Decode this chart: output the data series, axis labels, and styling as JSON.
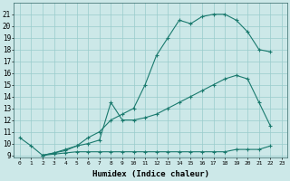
{
  "line1_x": [
    0,
    1,
    2,
    3,
    4,
    5,
    6,
    7,
    8,
    9,
    10,
    11,
    12,
    13,
    14,
    15,
    16,
    17,
    18,
    19,
    20,
    21,
    22
  ],
  "line1_y": [
    10.5,
    9.8,
    9.0,
    9.2,
    9.4,
    9.8,
    10.5,
    11.0,
    12.0,
    12.5,
    13.0,
    15.0,
    17.5,
    19.0,
    20.5,
    20.2,
    20.8,
    21.0,
    21.0,
    20.5,
    19.5,
    18.0,
    17.8
  ],
  "line2_x": [
    2,
    3,
    4,
    5,
    6,
    7,
    8,
    9,
    10,
    11,
    12,
    13,
    14,
    15,
    16,
    17,
    18,
    19,
    20,
    21,
    22
  ],
  "line2_y": [
    9.0,
    9.2,
    9.5,
    9.8,
    10.0,
    10.3,
    13.5,
    12.0,
    12.0,
    12.2,
    12.5,
    13.0,
    13.5,
    14.0,
    14.5,
    15.0,
    15.5,
    15.8,
    15.5,
    13.5,
    11.5
  ],
  "line3_x": [
    2,
    3,
    4,
    5,
    6,
    7,
    8,
    9,
    10,
    11,
    12,
    13,
    14,
    15,
    16,
    17,
    18,
    19,
    20,
    21,
    22
  ],
  "line3_y": [
    9.0,
    9.1,
    9.2,
    9.3,
    9.3,
    9.3,
    9.3,
    9.3,
    9.3,
    9.3,
    9.3,
    9.3,
    9.3,
    9.3,
    9.3,
    9.3,
    9.3,
    9.5,
    9.5,
    9.5,
    9.8
  ],
  "line_color": "#1a7a6e",
  "bg_color": "#cce8e8",
  "grid_color": "#99cccc",
  "xlabel": "Humidex (Indice chaleur)",
  "xlim": [
    -0.5,
    23.5
  ],
  "ylim": [
    8.8,
    22
  ],
  "yticks": [
    9,
    10,
    11,
    12,
    13,
    14,
    15,
    16,
    17,
    18,
    19,
    20,
    21
  ],
  "xticks": [
    0,
    1,
    2,
    3,
    4,
    5,
    6,
    7,
    8,
    9,
    10,
    11,
    12,
    13,
    14,
    15,
    16,
    17,
    18,
    19,
    20,
    21,
    22,
    23
  ],
  "xtick_labels_row1": [
    "0",
    "1",
    "2",
    "3",
    "4",
    "5",
    "6",
    "7",
    "8",
    "9",
    "10",
    "11",
    "12",
    "13",
    "14",
    "15",
    "16",
    "17",
    "18",
    "19",
    "20",
    "21",
    "22",
    "23"
  ]
}
